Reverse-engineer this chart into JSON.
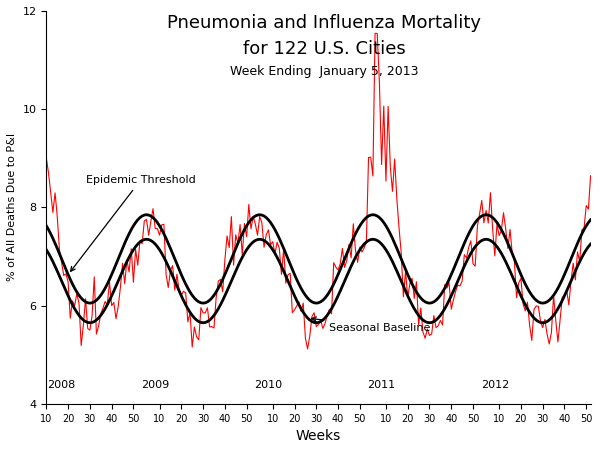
{
  "title_line1": "Pneumonia and Influenza Mortality",
  "title_line2": "for 122 U.S. Cities",
  "subtitle": "Week Ending  January 5, 2013",
  "xlabel": "Weeks",
  "ylabel": "% of All Deaths Due to P&I",
  "ylim": [
    4,
    12
  ],
  "yticks": [
    4,
    6,
    8,
    10,
    12
  ],
  "background_color": "#ffffff",
  "data_color": "#ff0000",
  "smooth_color": "#000000",
  "year_labels": [
    "2008",
    "2009",
    "2010",
    "2011",
    "2012"
  ],
  "epidemic_threshold_label": "Epidemic Threshold",
  "seasonal_baseline_label": "Seasonal Baseline",
  "title_fontsize": 13,
  "subtitle_fontsize": 9,
  "ylabel_fontsize": 8,
  "xlabel_fontsize": 10
}
